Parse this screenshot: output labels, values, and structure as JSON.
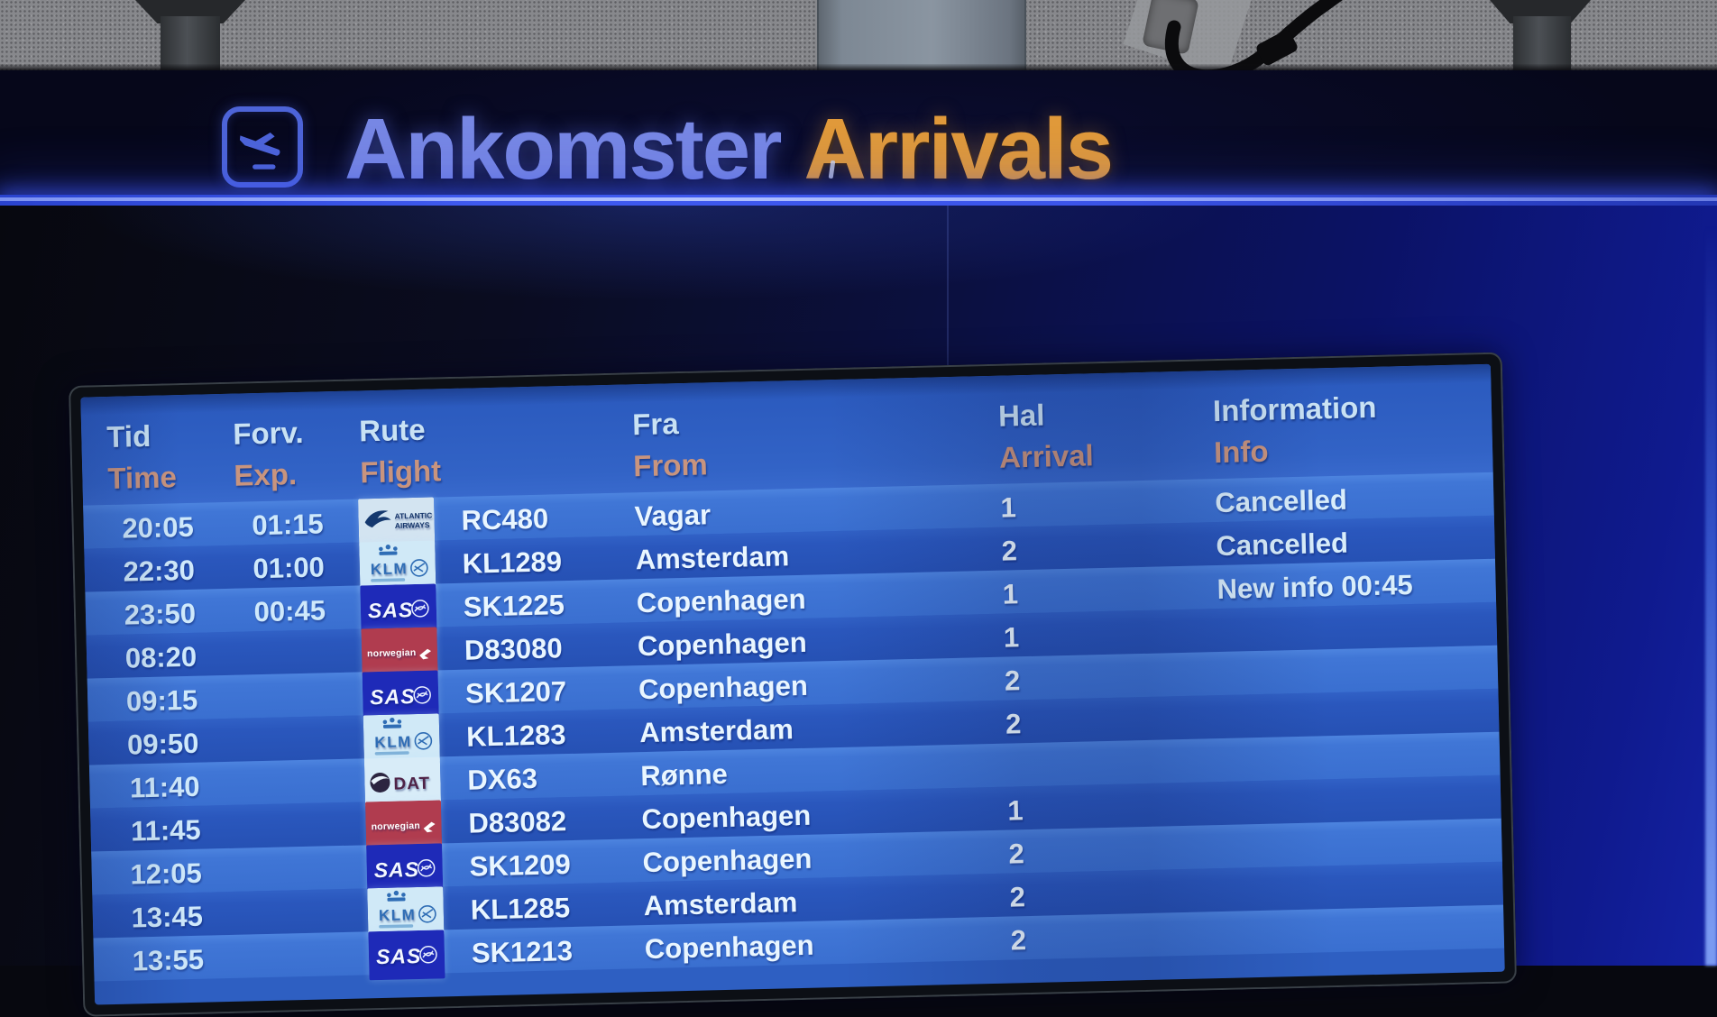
{
  "sign": {
    "title_da": "Ankomster",
    "title_en": "Arrivals",
    "icon": "arrival-plane-icon"
  },
  "colors": {
    "sign_blue": "#7787e4",
    "sign_orange": "#e0993a",
    "glow_line": "#3f5af0",
    "row_light": "#4076d6",
    "row_dark": "#2a57bd",
    "header_danish": "#c9e2f4",
    "header_english": "#c8947e",
    "value_text": "#e9f6ff"
  },
  "board": {
    "columns": [
      {
        "da": "Tid",
        "en": "Time"
      },
      {
        "da": "Forv.",
        "en": "Exp."
      },
      {
        "da": "Rute",
        "en": "Flight"
      },
      {
        "da": "Fra",
        "en": "From"
      },
      {
        "da": "Hal",
        "en": "Arrival"
      },
      {
        "da": "Information",
        "en": "Info"
      }
    ],
    "airline_logos": {
      "atlantic": {
        "line1": "ATLANTIC",
        "line2": "AIRWAYS"
      },
      "klm": {
        "text": "KLM"
      },
      "sas": {
        "text": "SAS"
      },
      "norwegian": {
        "text": "norwegian"
      },
      "dat": {
        "text": "DAT"
      }
    },
    "rows": [
      {
        "time": "20:05",
        "exp": "01:15",
        "airline": "atlantic",
        "flight": "RC480",
        "from": "Vagar",
        "hall": "1",
        "info": "Cancelled"
      },
      {
        "time": "22:30",
        "exp": "01:00",
        "airline": "klm",
        "flight": "KL1289",
        "from": "Amsterdam",
        "hall": "2",
        "info": "Cancelled"
      },
      {
        "time": "23:50",
        "exp": "00:45",
        "airline": "sas",
        "flight": "SK1225",
        "from": "Copenhagen",
        "hall": "1",
        "info": "New info 00:45"
      },
      {
        "time": "08:20",
        "exp": "",
        "airline": "norwegian",
        "flight": "D83080",
        "from": "Copenhagen",
        "hall": "1",
        "info": ""
      },
      {
        "time": "09:15",
        "exp": "",
        "airline": "sas",
        "flight": "SK1207",
        "from": "Copenhagen",
        "hall": "2",
        "info": ""
      },
      {
        "time": "09:50",
        "exp": "",
        "airline": "klm",
        "flight": "KL1283",
        "from": "Amsterdam",
        "hall": "2",
        "info": ""
      },
      {
        "time": "11:40",
        "exp": "",
        "airline": "dat",
        "flight": "DX63",
        "from": "Rønne",
        "hall": "",
        "info": ""
      },
      {
        "time": "11:45",
        "exp": "",
        "airline": "norwegian",
        "flight": "D83082",
        "from": "Copenhagen",
        "hall": "1",
        "info": ""
      },
      {
        "time": "12:05",
        "exp": "",
        "airline": "sas",
        "flight": "SK1209",
        "from": "Copenhagen",
        "hall": "2",
        "info": ""
      },
      {
        "time": "13:45",
        "exp": "",
        "airline": "klm",
        "flight": "KL1285",
        "from": "Amsterdam",
        "hall": "2",
        "info": ""
      },
      {
        "time": "13:55",
        "exp": "",
        "airline": "sas",
        "flight": "SK1213",
        "from": "Copenhagen",
        "hall": "2",
        "info": ""
      }
    ]
  }
}
